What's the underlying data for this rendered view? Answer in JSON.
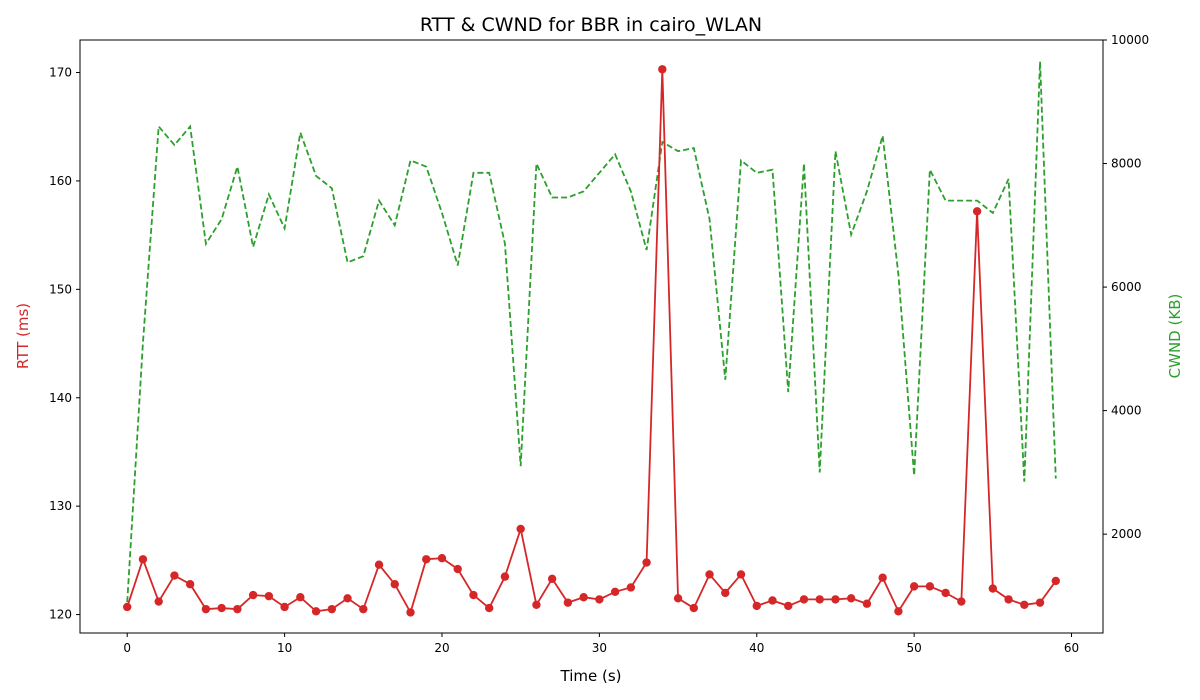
{
  "chart_data": {
    "type": "line",
    "title": "RTT & CWND for BBR in cairo_WLAN",
    "xlabel": "Time (s)",
    "ylabel_left": "RTT (ms)",
    "ylabel_right": "CWND (KB)",
    "xlim": [
      -3,
      62
    ],
    "ylim_left": [
      118.3,
      173
    ],
    "ylim_right": [
      400,
      10000
    ],
    "xticks": [
      0,
      10,
      20,
      30,
      40,
      50,
      60
    ],
    "yticks_left": [
      120,
      130,
      140,
      150,
      160,
      170
    ],
    "yticks_right": [
      2000,
      4000,
      6000,
      8000,
      10000
    ],
    "grid": false,
    "colors": {
      "rtt": "#d62728",
      "cwnd": "#2ca02c"
    },
    "x": [
      0,
      1,
      2,
      3,
      4,
      5,
      6,
      7,
      8,
      9,
      10,
      11,
      12,
      13,
      14,
      15,
      16,
      17,
      18,
      19,
      20,
      21,
      22,
      23,
      24,
      25,
      26,
      27,
      28,
      29,
      30,
      31,
      32,
      33,
      34,
      35,
      36,
      37,
      38,
      39,
      40,
      41,
      42,
      43,
      44,
      45,
      46,
      47,
      48,
      49,
      50,
      51,
      52,
      53,
      54,
      55,
      56,
      57,
      58,
      59
    ],
    "series": [
      {
        "axis": "left",
        "style": "solid-marker",
        "values": [
          120.7,
          125.1,
          121.2,
          123.6,
          122.8,
          120.5,
          120.6,
          120.5,
          121.8,
          121.7,
          120.7,
          121.6,
          120.3,
          120.5,
          121.5,
          120.5,
          124.6,
          122.8,
          120.2,
          125.1,
          125.2,
          124.2,
          121.8,
          120.6,
          123.5,
          127.9,
          120.9,
          123.3,
          121.1,
          121.6,
          121.4,
          122.1,
          122.5,
          124.8,
          170.3,
          121.5,
          120.6,
          123.7,
          122.0,
          123.7,
          120.8,
          121.3,
          120.8,
          121.4,
          121.4,
          121.4,
          121.5,
          121.0,
          123.4,
          120.3,
          122.6,
          122.6,
          122.0,
          121.2,
          157.2,
          122.4,
          121.4,
          120.9,
          121.1,
          123.1
        ]
      },
      {
        "axis": "right",
        "style": "dashed",
        "values": [
          900,
          5100,
          8600,
          8300,
          8600,
          6700,
          7100,
          7950,
          6650,
          7500,
          6950,
          8500,
          7800,
          7600,
          6400,
          6500,
          7400,
          7000,
          8050,
          7950,
          7200,
          6350,
          7850,
          7850,
          6700,
          3100,
          8000,
          7450,
          7450,
          7550,
          7850,
          8150,
          7550,
          6600,
          8350,
          8200,
          8250,
          7100,
          4500,
          8050,
          7850,
          7900,
          4300,
          8000,
          3000,
          8200,
          6850,
          7550,
          8450,
          6200,
          2950,
          7900,
          7400,
          7400,
          7400,
          7200,
          7750,
          2850,
          9650,
          2900
        ]
      }
    ]
  }
}
